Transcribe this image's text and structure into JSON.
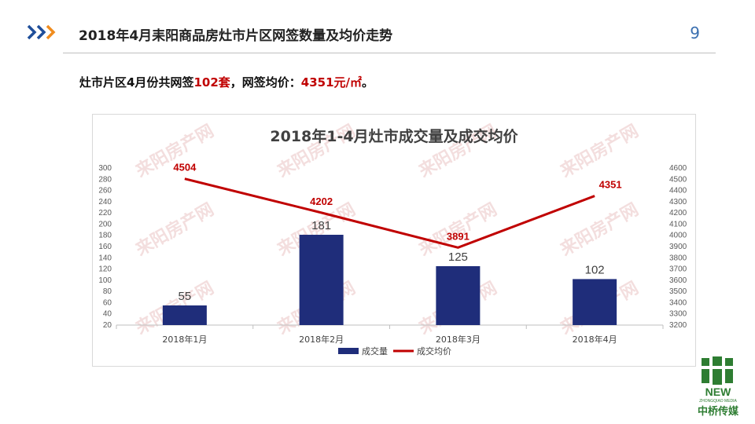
{
  "header": {
    "title": "2018年4月耒阳商品房灶市片区网签数量及均价走势",
    "page_number": "9"
  },
  "summary": {
    "part1": "灶市片区4月份共网签",
    "count": "102套",
    "part2": "，网签均价：",
    "price": "4351元/㎡",
    "part3": "。"
  },
  "watermark_text": "来阳房产网",
  "brand": {
    "logo_word": "NEW",
    "logo_sub": "ZHONGQIAO MEDIA",
    "logo_cn": "中桥传媒"
  },
  "chart_data": {
    "type": "bar+line",
    "title": "2018年1-4月灶市成交量及成交均价",
    "categories": [
      "2018年1月",
      "2018年2月",
      "2018年3月",
      "2018年4月"
    ],
    "series": [
      {
        "name": "成交量",
        "type": "bar",
        "axis": "left",
        "values": [
          55,
          181,
          125,
          102
        ],
        "color": "#1f2d7a"
      },
      {
        "name": "成交均价",
        "type": "line",
        "axis": "right",
        "values": [
          4504,
          4202,
          3891,
          4351
        ],
        "color": "#c00000"
      }
    ],
    "y_left": {
      "min": 20,
      "max": 300,
      "step": 20
    },
    "y_right": {
      "min": 3200,
      "max": 4600,
      "step": 100
    },
    "legend": "bottom",
    "grid": false
  }
}
